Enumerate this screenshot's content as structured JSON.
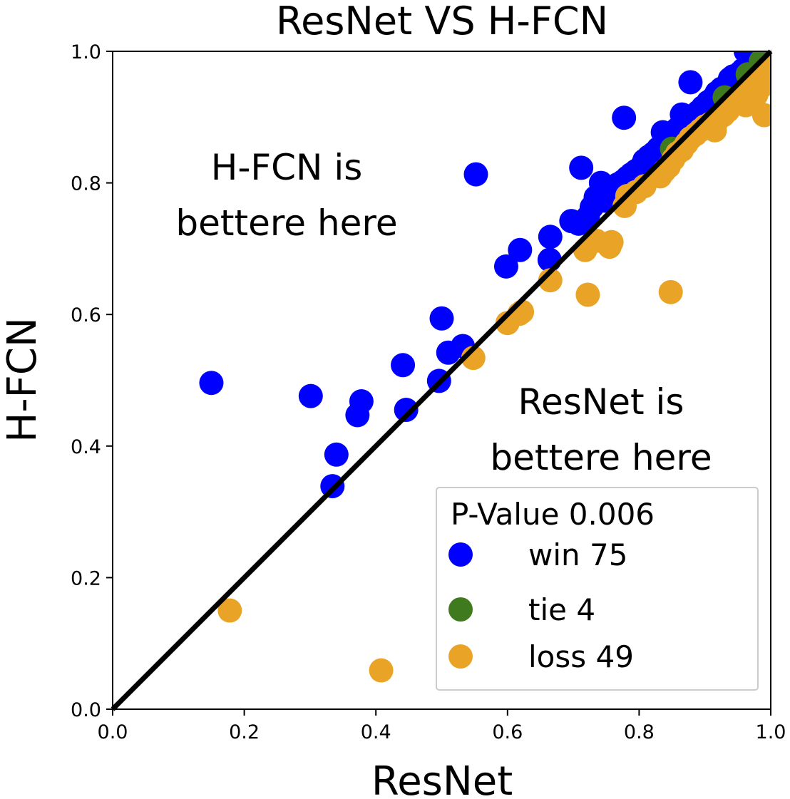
{
  "chart_data": {
    "type": "scatter",
    "title": "ResNet VS H-FCN",
    "xlabel": "ResNet",
    "ylabel": "H-FCN",
    "xlim": [
      0,
      1
    ],
    "ylim": [
      0,
      1
    ],
    "x_ticks": [
      "0.0",
      "0.2",
      "0.4",
      "0.6",
      "0.8",
      "1.0"
    ],
    "y_ticks": [
      "0.0",
      "0.2",
      "0.4",
      "0.6",
      "0.8",
      "1.0"
    ],
    "grid": false,
    "legend_position": "lower-right",
    "legend_title": "P-Value 0.006",
    "annotations": [
      {
        "lines": [
          "H-FCN is",
          "bettere here"
        ],
        "region": "upper-left"
      },
      {
        "lines": [
          "ResNet is",
          "bettere here"
        ],
        "region": "lower-right"
      }
    ],
    "diagonal": {
      "from": [
        0,
        0
      ],
      "to": [
        1,
        1
      ],
      "color": "#000000"
    },
    "series": [
      {
        "name": "win 75",
        "color": "#0000ff",
        "points": [
          [
            0.15,
            0.496
          ],
          [
            0.301,
            0.476
          ],
          [
            0.334,
            0.339
          ],
          [
            0.34,
            0.387
          ],
          [
            0.372,
            0.447
          ],
          [
            0.378,
            0.468
          ],
          [
            0.441,
            0.523
          ],
          [
            0.446,
            0.455
          ],
          [
            0.496,
            0.499
          ],
          [
            0.5,
            0.594
          ],
          [
            0.51,
            0.542
          ],
          [
            0.532,
            0.552
          ],
          [
            0.552,
            0.813
          ],
          [
            0.598,
            0.673
          ],
          [
            0.619,
            0.698
          ],
          [
            0.664,
            0.683
          ],
          [
            0.665,
            0.718
          ],
          [
            0.697,
            0.742
          ],
          [
            0.708,
            0.738
          ],
          [
            0.712,
            0.823
          ],
          [
            0.722,
            0.748
          ],
          [
            0.728,
            0.763
          ],
          [
            0.734,
            0.778
          ],
          [
            0.742,
            0.8
          ],
          [
            0.748,
            0.773
          ],
          [
            0.754,
            0.789
          ],
          [
            0.762,
            0.794
          ],
          [
            0.768,
            0.798
          ],
          [
            0.775,
            0.802
          ],
          [
            0.777,
            0.899
          ],
          [
            0.782,
            0.808
          ],
          [
            0.788,
            0.813
          ],
          [
            0.795,
            0.818
          ],
          [
            0.802,
            0.823
          ],
          [
            0.808,
            0.834
          ],
          [
            0.815,
            0.84
          ],
          [
            0.822,
            0.845
          ],
          [
            0.829,
            0.852
          ],
          [
            0.836,
            0.877
          ],
          [
            0.843,
            0.864
          ],
          [
            0.852,
            0.873
          ],
          [
            0.858,
            0.882
          ],
          [
            0.865,
            0.904
          ],
          [
            0.872,
            0.893
          ],
          [
            0.878,
            0.953
          ],
          [
            0.884,
            0.899
          ],
          [
            0.89,
            0.908
          ],
          [
            0.897,
            0.915
          ],
          [
            0.901,
            0.899
          ],
          [
            0.905,
            0.923
          ],
          [
            0.912,
            0.928
          ],
          [
            0.918,
            0.937
          ],
          [
            0.925,
            0.943
          ],
          [
            0.932,
            0.946
          ],
          [
            0.938,
            0.958
          ],
          [
            0.943,
            0.962
          ],
          [
            0.948,
            0.963
          ],
          [
            0.953,
            0.967
          ],
          [
            0.958,
            0.972
          ],
          [
            0.963,
            0.976
          ],
          [
            0.968,
            0.98
          ],
          [
            0.972,
            0.984
          ],
          [
            0.976,
            0.988
          ],
          [
            0.98,
            0.992
          ],
          [
            0.984,
            0.995
          ],
          [
            0.988,
            0.998
          ],
          [
            0.991,
            1.0
          ],
          [
            0.962,
            1.0
          ],
          [
            0.948,
            0.956
          ],
          [
            0.935,
            0.938
          ],
          [
            0.922,
            0.933
          ],
          [
            0.91,
            0.919
          ],
          [
            0.896,
            0.906
          ],
          [
            0.884,
            0.889
          ],
          [
            0.87,
            0.886
          ]
        ]
      },
      {
        "name": "tie 4",
        "color": "#3f7a1e",
        "points": [
          [
            0.85,
            0.852
          ],
          [
            0.93,
            0.93
          ],
          [
            0.965,
            0.965
          ],
          [
            0.985,
            0.985
          ]
        ]
      },
      {
        "name": "loss 49",
        "color": "#e9a427",
        "points": [
          [
            0.178,
            0.15
          ],
          [
            0.408,
            0.059
          ],
          [
            0.548,
            0.534
          ],
          [
            0.6,
            0.587
          ],
          [
            0.618,
            0.601
          ],
          [
            0.622,
            0.604
          ],
          [
            0.665,
            0.652
          ],
          [
            0.718,
            0.698
          ],
          [
            0.722,
            0.63
          ],
          [
            0.735,
            0.712
          ],
          [
            0.755,
            0.703
          ],
          [
            0.758,
            0.71
          ],
          [
            0.778,
            0.765
          ],
          [
            0.782,
            0.78
          ],
          [
            0.795,
            0.786
          ],
          [
            0.808,
            0.795
          ],
          [
            0.832,
            0.81
          ],
          [
            0.838,
            0.818
          ],
          [
            0.845,
            0.825
          ],
          [
            0.848,
            0.634
          ],
          [
            0.852,
            0.836
          ],
          [
            0.858,
            0.845
          ],
          [
            0.865,
            0.85
          ],
          [
            0.872,
            0.86
          ],
          [
            0.878,
            0.868
          ],
          [
            0.886,
            0.874
          ],
          [
            0.893,
            0.88
          ],
          [
            0.9,
            0.886
          ],
          [
            0.908,
            0.89
          ],
          [
            0.915,
            0.88
          ],
          [
            0.92,
            0.897
          ],
          [
            0.928,
            0.903
          ],
          [
            0.935,
            0.91
          ],
          [
            0.94,
            0.918
          ],
          [
            0.946,
            0.924
          ],
          [
            0.952,
            0.93
          ],
          [
            0.958,
            0.936
          ],
          [
            0.962,
            0.918
          ],
          [
            0.966,
            0.94
          ],
          [
            0.97,
            0.946
          ],
          [
            0.974,
            0.95
          ],
          [
            0.978,
            0.934
          ],
          [
            0.982,
            0.955
          ],
          [
            0.985,
            0.96
          ],
          [
            0.988,
            0.948
          ],
          [
            0.99,
            0.903
          ],
          [
            0.992,
            0.965
          ],
          [
            0.995,
            0.97
          ],
          [
            0.997,
            0.975
          ]
        ]
      }
    ]
  }
}
